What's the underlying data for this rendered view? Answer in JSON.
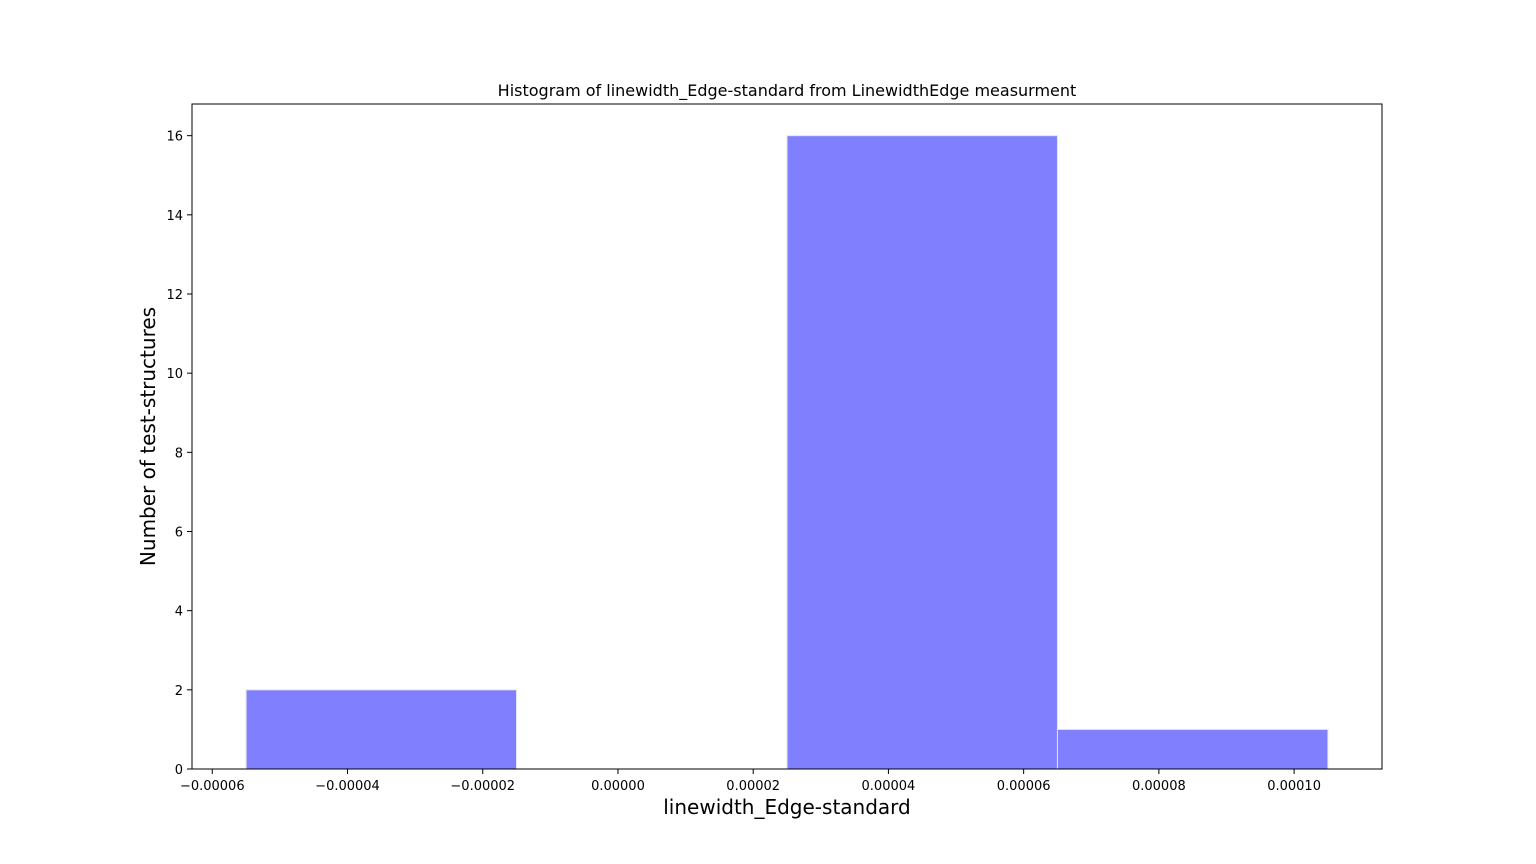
{
  "chart_data": {
    "type": "bar",
    "title": "Histogram of linewidth_Edge-standard from LinewidthEdge measurment",
    "xlabel": "linewidth_Edge-standard",
    "ylabel": "Number of test-structures",
    "bins": [
      {
        "x0": -5.5e-05,
        "x1": -1.5e-05,
        "count": 2
      },
      {
        "x0": -1.5e-05,
        "x1": 2.5e-05,
        "count": 0
      },
      {
        "x0": 2.5e-05,
        "x1": 6.5e-05,
        "count": 16
      },
      {
        "x0": 6.5e-05,
        "x1": 0.000105,
        "count": 1
      }
    ],
    "xlim": [
      -6.3e-05,
      0.000113
    ],
    "ylim": [
      0,
      16.8
    ],
    "xticks": [
      {
        "value": -6e-05,
        "label": "−0.00006"
      },
      {
        "value": -4e-05,
        "label": "−0.00004"
      },
      {
        "value": -2e-05,
        "label": "−0.00002"
      },
      {
        "value": 0.0,
        "label": "0.00000"
      },
      {
        "value": 2e-05,
        "label": "0.00002"
      },
      {
        "value": 4e-05,
        "label": "0.00004"
      },
      {
        "value": 6e-05,
        "label": "0.00006"
      },
      {
        "value": 8e-05,
        "label": "0.00008"
      },
      {
        "value": 0.0001,
        "label": "0.00010"
      }
    ],
    "yticks": [
      {
        "value": 0,
        "label": "0"
      },
      {
        "value": 2,
        "label": "2"
      },
      {
        "value": 4,
        "label": "4"
      },
      {
        "value": 6,
        "label": "6"
      },
      {
        "value": 8,
        "label": "8"
      },
      {
        "value": 10,
        "label": "10"
      },
      {
        "value": 12,
        "label": "12"
      },
      {
        "value": 14,
        "label": "14"
      },
      {
        "value": 16,
        "label": "16"
      }
    ],
    "grid": false,
    "bar_color": "#8080ff",
    "bar_edge_color": "#e6e6e6"
  }
}
